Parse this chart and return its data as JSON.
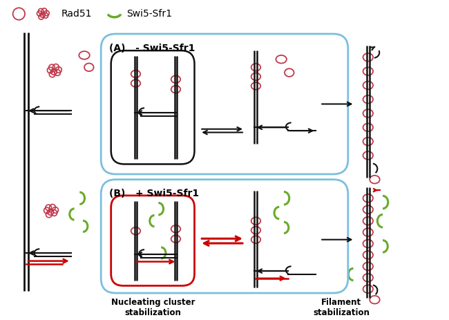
{
  "fig_width": 6.5,
  "fig_height": 4.63,
  "dpi": 100,
  "bg_color": "#ffffff",
  "rad51_color": "#c0394a",
  "swi5_color": "#6aaa2a",
  "dna_color": "#111111",
  "arrow_color_red": "#cc0000",
  "box_color_blue": "#7bbfdf",
  "box_color_red": "#cc0000",
  "title_A": "(A)   - Swi5-Sfr1",
  "title_B": "(B)   + Swi5-Sfr1",
  "label_nucleating": "Nucleating cluster\nstabilization",
  "label_filament": "Filament\nstabilization",
  "legend_rad51": "Rad51",
  "legend_swi5": "Swi5-Sfr1"
}
